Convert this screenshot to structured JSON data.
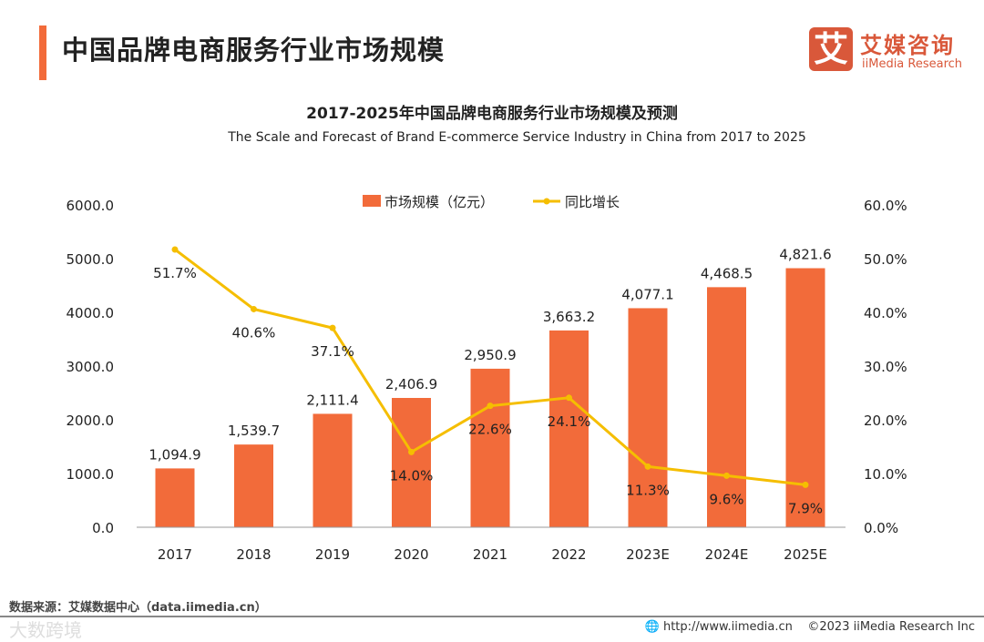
{
  "header": {
    "title": "中国品牌电商服务行业市场规模"
  },
  "logo": {
    "mark": "艾",
    "cn": "艾媒咨询",
    "en": "iiMedia Research"
  },
  "colors": {
    "bar": "#F26B3A",
    "line": "#F5BE00",
    "accent": "#F26B3A"
  },
  "footer": {
    "source": "数据来源：艾媒数据中心（data.iimedia.cn）",
    "url": "http://www.iimedia.cn",
    "copyright": "©2023  iiMedia Research  Inc",
    "watermark": "大数跨境"
  },
  "chart_data": {
    "type": "bar",
    "title": "2017-2025年中国品牌电商服务行业市场规模及预测",
    "subtitle": "The Scale and Forecast of Brand E-commerce Service Industry in China from 2017 to 2025",
    "categories": [
      "2017",
      "2018",
      "2019",
      "2020",
      "2021",
      "2022",
      "2023E",
      "2024E",
      "2025E"
    ],
    "series": [
      {
        "name": "市场规模（亿元）",
        "type": "bar",
        "axis": "left",
        "values": [
          1094.9,
          1539.7,
          2111.4,
          2406.9,
          2950.9,
          3663.2,
          4077.1,
          4468.5,
          4821.6
        ],
        "labels": [
          "1,094.9",
          "1,539.7",
          "2,111.4",
          "2,406.9",
          "2,950.9",
          "3,663.2",
          "4,077.1",
          "4,468.5",
          "4,821.6"
        ]
      },
      {
        "name": "同比增长",
        "type": "line",
        "axis": "right",
        "values": [
          51.7,
          40.6,
          37.1,
          14.0,
          22.6,
          24.1,
          11.3,
          9.6,
          7.9
        ],
        "labels": [
          "51.7%",
          "40.6%",
          "37.1%",
          "14.0%",
          "22.6%",
          "24.1%",
          "11.3%",
          "9.6%",
          "7.9%"
        ]
      }
    ],
    "ylim_left": [
      0,
      6000
    ],
    "yticks_left": [
      "0.0",
      "1000.0",
      "2000.0",
      "3000.0",
      "4000.0",
      "5000.0",
      "6000.0"
    ],
    "ylim_right": [
      0,
      60
    ],
    "yticks_right": [
      "0.0%",
      "10.0%",
      "20.0%",
      "30.0%",
      "40.0%",
      "50.0%",
      "60.0%"
    ],
    "legend": "top-center",
    "grid": false
  }
}
